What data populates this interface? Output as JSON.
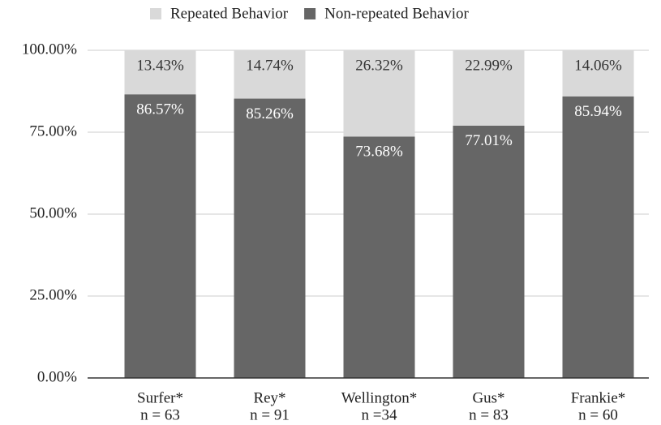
{
  "chart_data": {
    "type": "stacked_bar",
    "categories": [
      "Surfer*",
      "Rey*",
      "Wellington*",
      "Gus*",
      "Frankie*"
    ],
    "sample_sizes": [
      "n = 63",
      "n = 91",
      "n =34",
      "n = 83",
      "n = 60"
    ],
    "series": [
      {
        "name": "Repeated Behavior",
        "color": "#d9d9d9",
        "label_color": "#333333",
        "values": [
          13.43,
          14.74,
          26.32,
          22.99,
          14.06
        ],
        "value_labels": [
          "13.43%",
          "14.74%",
          "26.32%",
          "22.99%",
          "14.06%"
        ]
      },
      {
        "name": "Non-repeated Behavior",
        "color": "#666666",
        "label_color": "#ffffff",
        "values": [
          86.57,
          85.26,
          73.68,
          77.01,
          85.94
        ],
        "value_labels": [
          "86.57%",
          "85.26%",
          "73.68%",
          "77.01%",
          "85.94%"
        ]
      }
    ],
    "ylim": [
      0,
      100
    ],
    "yticks": [
      {
        "value": 0,
        "label": "0.00%"
      },
      {
        "value": 25,
        "label": "25.00%"
      },
      {
        "value": 50,
        "label": "50.00%"
      },
      {
        "value": 75,
        "label": "75.00%"
      },
      {
        "value": 100,
        "label": "100.00%"
      }
    ],
    "grid": true,
    "legend": "top"
  }
}
